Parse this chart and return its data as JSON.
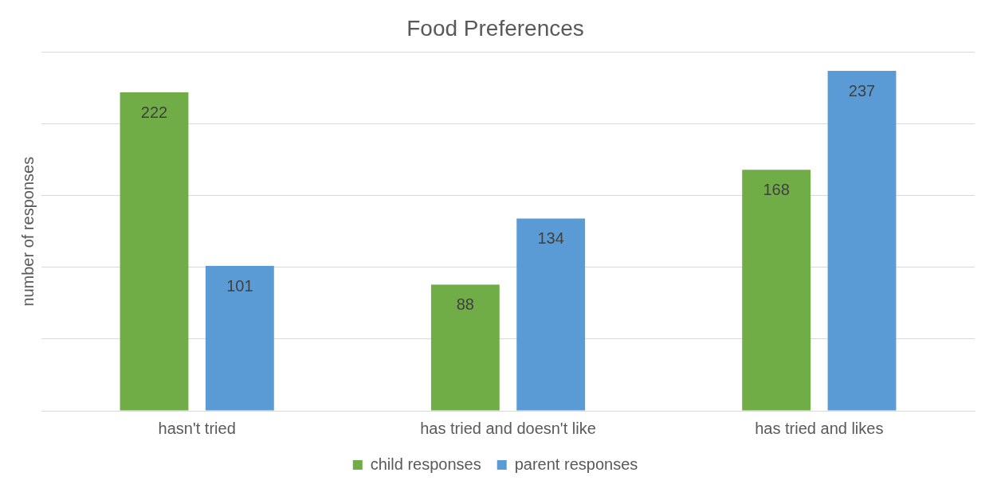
{
  "chart_data": {
    "type": "bar",
    "title": "Food Preferences",
    "ylabel": "number of responses",
    "categories": [
      "hasn't tried",
      "has tried and doesn't like",
      "has tried and likes"
    ],
    "series": [
      {
        "name": "child responses",
        "color": "#70ad47",
        "values": [
          222,
          88,
          168
        ]
      },
      {
        "name": "parent responses",
        "color": "#5b9bd5",
        "values": [
          101,
          134,
          237
        ]
      }
    ],
    "ylim": [
      0,
      250
    ],
    "yticks": [
      {
        "value": 0,
        "label": null
      },
      {
        "value": 50,
        "label": null
      },
      {
        "value": 100,
        "label": null
      },
      {
        "value": 150,
        "label": null
      },
      {
        "value": 200,
        "label": null
      },
      {
        "value": 250,
        "label": null
      }
    ],
    "grid": "y",
    "tick_labels": "x",
    "legend": "bottom",
    "data_labels": true
  }
}
